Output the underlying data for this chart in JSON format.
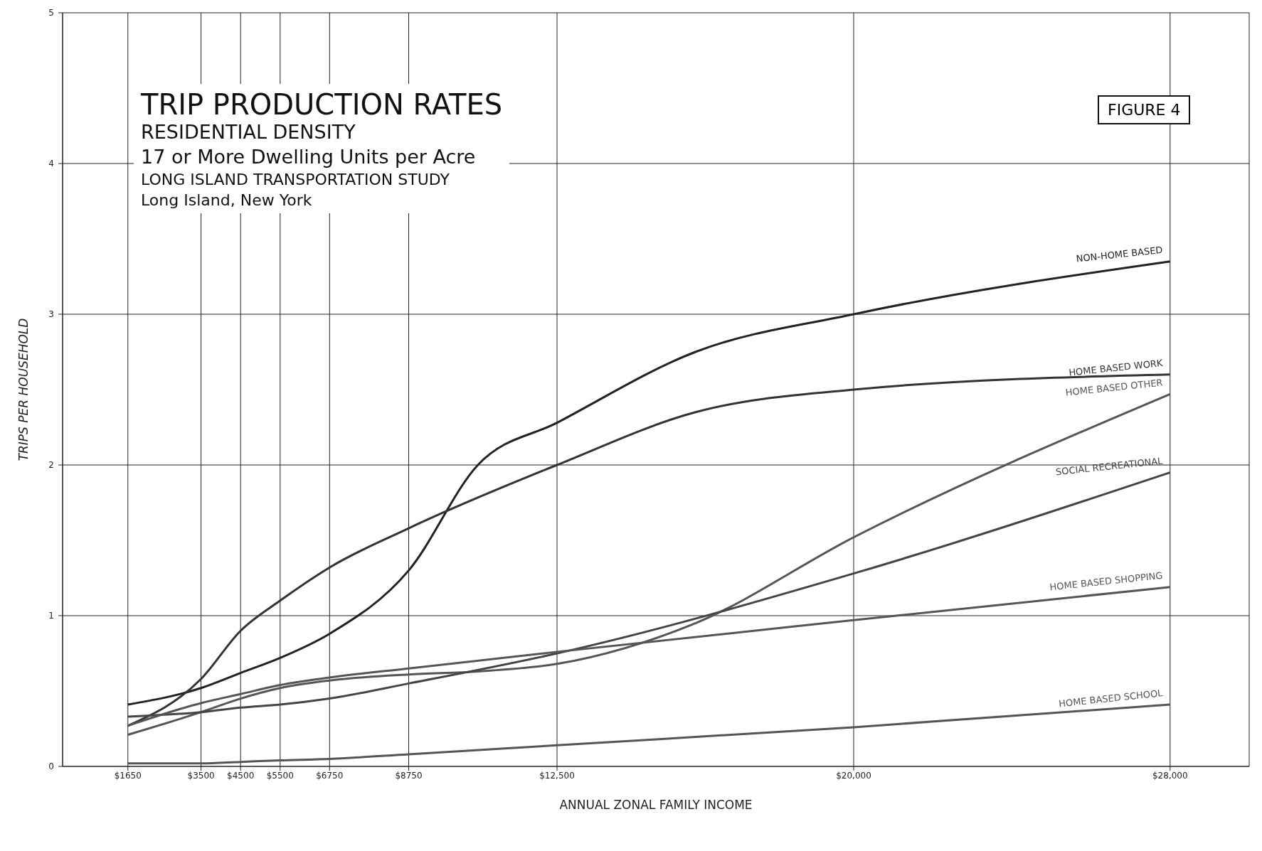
{
  "chart_data": {
    "type": "line",
    "title": "TRIP PRODUCTION RATES",
    "subtitle": "RESIDENTIAL DENSITY",
    "annotations": [
      "17 or More Dwelling Units per Acre",
      "LONG ISLAND TRANSPORTATION STUDY",
      "Long Island, New York",
      "FIGURE 4"
    ],
    "xlabel": "ANNUAL ZONAL FAMILY INCOME",
    "ylabel": "TRIPS PER HOUSEHOLD",
    "xlim": [
      0,
      30000
    ],
    "ylim": [
      0,
      5
    ],
    "xticks": [
      {
        "value": 1650,
        "label": "$1650"
      },
      {
        "value": 3500,
        "label": "$3500"
      },
      {
        "value": 4500,
        "label": "$4500"
      },
      {
        "value": 5500,
        "label": "$5500"
      },
      {
        "value": 6750,
        "label": "$6750"
      },
      {
        "value": 8750,
        "label": "$8750"
      },
      {
        "value": 12500,
        "label": "$12,500"
      },
      {
        "value": 20000,
        "label": "$20,000"
      },
      {
        "value": 28000,
        "label": "$28,000"
      }
    ],
    "yticks": [
      0,
      1,
      2,
      3,
      4,
      5
    ],
    "grid": true,
    "legend": false,
    "marker": "none",
    "line_style": "solid",
    "series": [
      {
        "name": "NON-HOME BASED",
        "color": "#222222",
        "x": [
          1650,
          3500,
          4500,
          5500,
          6750,
          8750,
          10500,
          12500,
          16000,
          20000,
          28000
        ],
        "values": [
          0.41,
          0.52,
          0.62,
          0.72,
          0.88,
          1.3,
          2.0,
          2.28,
          2.75,
          3.0,
          3.35
        ]
      },
      {
        "name": "HOME BASED WORK",
        "color": "#333333",
        "x": [
          1650,
          3500,
          4500,
          5500,
          6750,
          8750,
          12500,
          16000,
          20000,
          28000
        ],
        "values": [
          0.27,
          0.58,
          0.9,
          1.1,
          1.32,
          1.58,
          2.0,
          2.35,
          2.5,
          2.6
        ]
      },
      {
        "name": "HOME BASED OTHER",
        "color": "#555555",
        "x": [
          1650,
          3500,
          4500,
          5500,
          6750,
          8750,
          10500,
          12500,
          16000,
          20000,
          28000
        ],
        "values": [
          0.21,
          0.36,
          0.45,
          0.52,
          0.57,
          0.61,
          0.63,
          0.68,
          0.95,
          1.52,
          2.47
        ]
      },
      {
        "name": "SOCIAL RECREATIONAL",
        "color": "#444444",
        "x": [
          1650,
          3500,
          4500,
          5500,
          6750,
          8750,
          12500,
          20000,
          28000
        ],
        "values": [
          0.33,
          0.36,
          0.39,
          0.41,
          0.45,
          0.55,
          0.75,
          1.28,
          1.95
        ]
      },
      {
        "name": "HOME BASED SHOPPING",
        "color": "#555555",
        "x": [
          1650,
          3500,
          4500,
          5500,
          6750,
          8750,
          12500,
          20000,
          28000
        ],
        "values": [
          0.27,
          0.42,
          0.48,
          0.54,
          0.59,
          0.65,
          0.76,
          0.97,
          1.19
        ]
      },
      {
        "name": "HOME BASED SCHOOL",
        "color": "#555555",
        "x": [
          1650,
          3500,
          4500,
          5500,
          6750,
          8750,
          12500,
          20000,
          28000
        ],
        "values": [
          0.02,
          0.02,
          0.03,
          0.04,
          0.05,
          0.08,
          0.14,
          0.26,
          0.41
        ]
      }
    ]
  }
}
